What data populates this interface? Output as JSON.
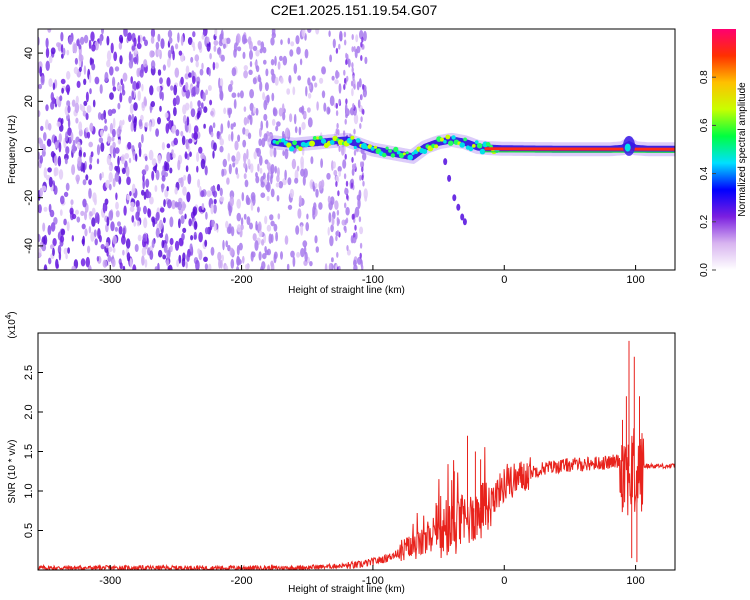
{
  "figure": {
    "title": "C2E1.2025.151.19.54.G07"
  },
  "chart_data": [
    {
      "type": "heatmap",
      "xlabel": "Height of straight line (km)",
      "ylabel": "Frequency (Hz)",
      "xlim": [
        -355,
        130
      ],
      "ylim": [
        -50,
        50
      ],
      "xticks": [
        -300,
        -200,
        -100,
        0,
        100
      ],
      "yticks": [
        -40,
        -20,
        0,
        20,
        40
      ],
      "colorbar": {
        "label": "Normalized spectral amplitude",
        "range": [
          0,
          1
        ],
        "ticks": [
          0.0,
          0.2,
          0.4,
          0.6,
          0.8
        ],
        "colors": [
          "#ffffff",
          "#d8b4f0",
          "#7b1fe0",
          "#0000ff",
          "#00e0ff",
          "#00ff40",
          "#c8ff00",
          "#ffc000",
          "#ff3000",
          "#ff0070"
        ]
      },
      "noise_region_x": [
        -355,
        -105
      ],
      "ridge": {
        "x": [
          -175,
          -160,
          -140,
          -120,
          -110,
          -100,
          -90,
          -80,
          -70,
          -60,
          -50,
          -40,
          -30,
          -20,
          -10,
          0,
          20,
          50,
          80,
          90,
          95,
          100,
          110,
          130
        ],
        "y": [
          3,
          2,
          3,
          4,
          2,
          0,
          -1,
          -2,
          -3,
          1,
          3,
          4,
          3,
          1,
          0.5,
          0.3,
          0.2,
          0.1,
          0.1,
          0.5,
          2,
          0.5,
          0.1,
          0.1
        ]
      },
      "branch": {
        "x": [
          -45,
          -42,
          -38,
          -35,
          -32,
          -30
        ],
        "y": [
          -5,
          -12,
          -20,
          -24,
          -28,
          -30
        ]
      }
    },
    {
      "type": "line",
      "xlabel": "Height of straight line (km)",
      "ylabel": "SNR (10 * v/v)",
      "y_multiplier": "(x10",
      "y_multiplier_exp": "4",
      "y_multiplier_close": ")",
      "xlim": [
        -355,
        130
      ],
      "ylim": [
        0,
        3.0
      ],
      "xticks": [
        -300,
        -200,
        -100,
        0,
        100
      ],
      "yticks": [
        0.5,
        1.0,
        1.5,
        2.0,
        2.5
      ],
      "color": "#e8221c",
      "envelope": {
        "x": [
          -355,
          -160,
          -130,
          -110,
          -90,
          -70,
          -50,
          -30,
          -15,
          -10,
          0,
          15,
          30,
          50,
          80,
          88,
          100,
          105,
          130
        ],
        "y": [
          0.03,
          0.03,
          0.05,
          0.07,
          0.15,
          0.3,
          0.45,
          0.65,
          0.8,
          0.9,
          1.1,
          1.22,
          1.3,
          1.34,
          1.37,
          1.4,
          1.25,
          1.32,
          1.32
        ]
      },
      "spikes": {
        "x": [
          -38,
          -28,
          -22,
          -18,
          -12,
          90,
          93,
          95,
          97,
          99,
          101,
          103
        ],
        "y": [
          1.25,
          1.7,
          1.5,
          1.4,
          0.6,
          1.9,
          2.2,
          2.9,
          0.15,
          2.7,
          0.1,
          2.2
        ]
      }
    }
  ]
}
